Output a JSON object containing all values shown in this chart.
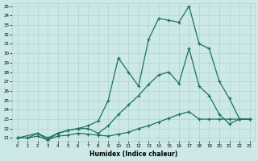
{
  "xlabel": "Humidex (Indice chaleur)",
  "xlim": [
    -0.5,
    23.5
  ],
  "ylim": [
    20.7,
    35.3
  ],
  "xticks": [
    0,
    1,
    2,
    3,
    4,
    5,
    6,
    7,
    8,
    9,
    10,
    11,
    12,
    13,
    14,
    15,
    16,
    17,
    18,
    19,
    20,
    21,
    22,
    23
  ],
  "yticks": [
    21,
    22,
    23,
    24,
    25,
    26,
    27,
    28,
    29,
    30,
    31,
    32,
    33,
    34,
    35
  ],
  "bg_color": "#cce9e7",
  "grid_color": "#aed4d1",
  "line_color": "#1f6f68",
  "line1_x": [
    0,
    1,
    2,
    3,
    4,
    5,
    6,
    7,
    8,
    9,
    10,
    11,
    12,
    13,
    14,
    15,
    16,
    17,
    18,
    19,
    20,
    21,
    22,
    23
  ],
  "line1_y": [
    21.0,
    21.0,
    21.2,
    20.8,
    21.2,
    21.3,
    21.5,
    21.4,
    21.3,
    21.2,
    21.4,
    21.6,
    22.0,
    22.3,
    22.7,
    23.1,
    23.5,
    23.8,
    23.0,
    23.0,
    23.0,
    23.0,
    23.0,
    23.0
  ],
  "line2_x": [
    0,
    1,
    2,
    3,
    4,
    5,
    6,
    7,
    8,
    9,
    10,
    11,
    12,
    13,
    14,
    15,
    16,
    17,
    18,
    19,
    20,
    21,
    22,
    23
  ],
  "line2_y": [
    21.0,
    21.0,
    21.5,
    21.0,
    21.5,
    21.8,
    22.0,
    22.0,
    21.5,
    22.3,
    23.5,
    24.5,
    25.5,
    26.7,
    27.7,
    28.0,
    26.8,
    30.5,
    26.5,
    25.5,
    23.5,
    22.5,
    23.0,
    23.0
  ],
  "line3_x": [
    0,
    2,
    3,
    4,
    5,
    6,
    7,
    8,
    9,
    10,
    11,
    12,
    13,
    14,
    15,
    16,
    17,
    18,
    19,
    20,
    21,
    22,
    23
  ],
  "line3_y": [
    21.0,
    21.5,
    20.8,
    21.5,
    21.8,
    22.0,
    22.3,
    22.8,
    25.0,
    29.5,
    28.0,
    26.5,
    31.5,
    33.7,
    33.5,
    33.3,
    35.0,
    31.0,
    30.5,
    27.0,
    25.2,
    23.0,
    23.0
  ]
}
